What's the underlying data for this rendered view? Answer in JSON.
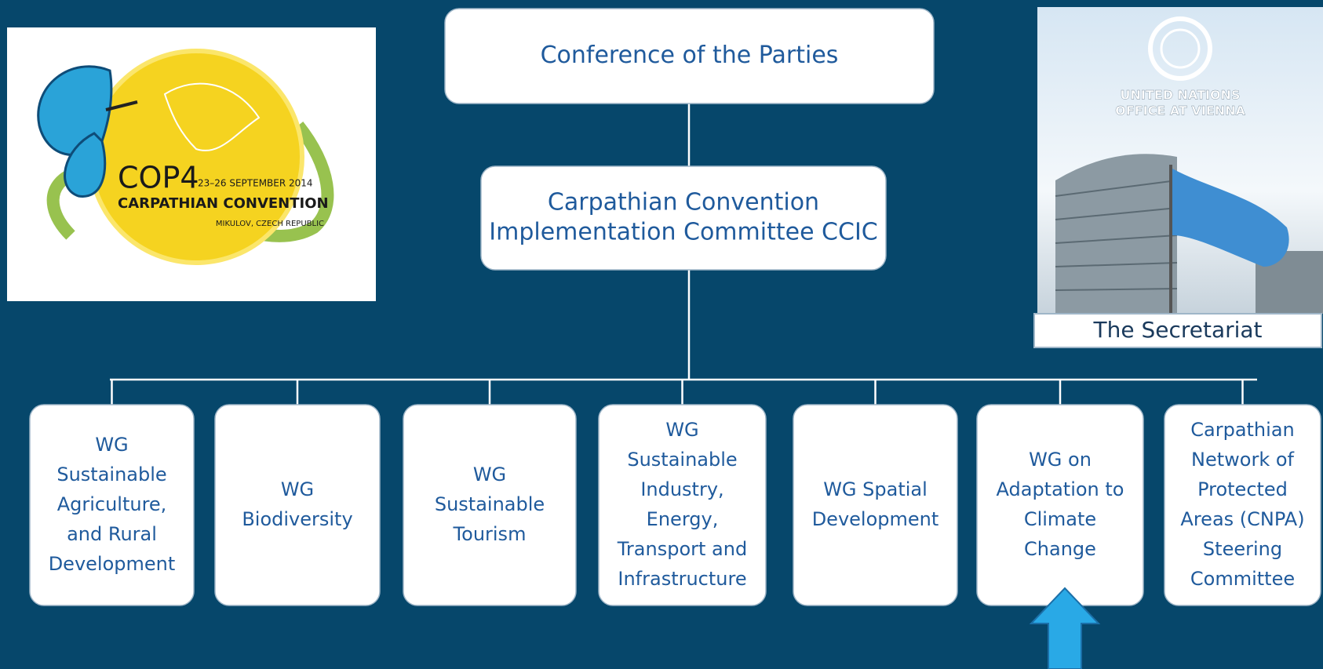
{
  "top": [
    {
      "label": [
        "Conference of the Parties"
      ]
    },
    {
      "label": [
        "Carpathian Convention",
        "Implementation Committee CCIC"
      ]
    }
  ],
  "working_groups": [
    {
      "label": [
        "WG",
        "Sustainable",
        "Agriculture,",
        "and Rural",
        "Development"
      ]
    },
    {
      "label": [
        "WG",
        "Biodiversity"
      ]
    },
    {
      "label": [
        "WG",
        "Sustainable",
        "Tourism"
      ]
    },
    {
      "label": [
        "WG",
        "Sustainable",
        "Industry,",
        "Energy,",
        "Transport and",
        "Infrastructure"
      ]
    },
    {
      "label": [
        "WG Spatial",
        "Development"
      ]
    },
    {
      "label": [
        "WG on",
        "Adaptation to",
        "Climate",
        "Change"
      ]
    },
    {
      "label": [
        "Carpathian",
        "Network of",
        "Protected",
        "Areas (CNPA)",
        "Steering",
        "Committee"
      ]
    }
  ],
  "logo": {
    "event": "COP4",
    "dates": "23–26 SEPTEMBER 2014",
    "name": "CARPATHIAN CONVENTION",
    "place": "MIKULOV, CZECH REPUBLIC"
  },
  "secretariat": {
    "org": [
      "UNITED NATIONS",
      "OFFICE AT VIENNA"
    ],
    "caption": "The  Secretariat"
  }
}
